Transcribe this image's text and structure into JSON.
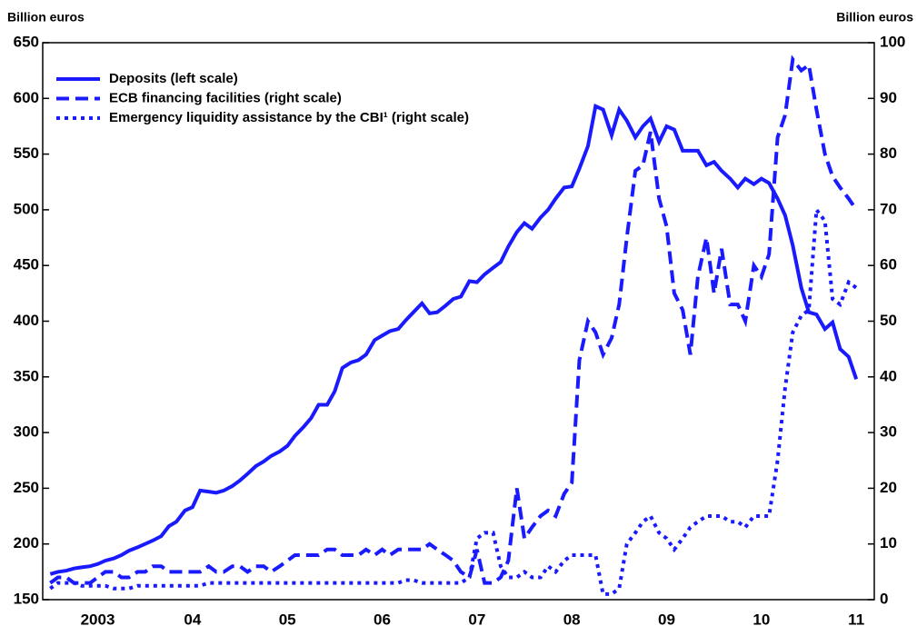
{
  "chart_data": {
    "type": "line",
    "y_label": "Billion euros",
    "y2_label": "Billion euros",
    "x": [
      2003,
      2003.08,
      2003.17,
      2003.25,
      2003.33,
      2003.42,
      2003.5,
      2003.58,
      2003.67,
      2003.75,
      2003.83,
      2003.92,
      2004,
      2004.08,
      2004.17,
      2004.25,
      2004.33,
      2004.42,
      2004.5,
      2004.58,
      2004.67,
      2004.75,
      2004.83,
      2004.92,
      2005,
      2005.08,
      2005.17,
      2005.25,
      2005.33,
      2005.42,
      2005.5,
      2005.58,
      2005.67,
      2005.75,
      2005.83,
      2005.92,
      2006,
      2006.08,
      2006.17,
      2006.25,
      2006.33,
      2006.42,
      2006.5,
      2006.58,
      2006.67,
      2006.75,
      2006.83,
      2006.92,
      2007,
      2007.08,
      2007.17,
      2007.25,
      2007.33,
      2007.42,
      2007.5,
      2007.58,
      2007.67,
      2007.75,
      2007.83,
      2007.92,
      2008,
      2008.08,
      2008.17,
      2008.25,
      2008.33,
      2008.42,
      2008.5,
      2008.58,
      2008.67,
      2008.75,
      2008.83,
      2008.92,
      2009,
      2009.08,
      2009.17,
      2009.25,
      2009.33,
      2009.42,
      2009.5,
      2009.58,
      2009.67,
      2009.75,
      2009.83,
      2009.92,
      2010,
      2010.08,
      2010.17,
      2010.25,
      2010.33,
      2010.42,
      2010.5,
      2010.58,
      2010.67,
      2010.75,
      2010.83,
      2010.92,
      2011,
      2011.08,
      2011.17,
      2011.25,
      2011.33,
      2011.42,
      2011.5
    ],
    "xlim": [
      2002.92,
      2011.69
    ],
    "xticks": [
      {
        "value": 2003.5,
        "label": "2003"
      },
      {
        "value": 2004.5,
        "label": "04"
      },
      {
        "value": 2005.5,
        "label": "05"
      },
      {
        "value": 2006.5,
        "label": "06"
      },
      {
        "value": 2007.5,
        "label": "07"
      },
      {
        "value": 2008.5,
        "label": "08"
      },
      {
        "value": 2009.5,
        "label": "09"
      },
      {
        "value": 2010.5,
        "label": "10"
      },
      {
        "value": 2011.5,
        "label": "11"
      }
    ],
    "ylim": [
      150,
      650
    ],
    "yticks": [
      150,
      200,
      250,
      300,
      350,
      400,
      450,
      500,
      550,
      600,
      650
    ],
    "y2lim": [
      0,
      100
    ],
    "y2ticks": [
      0,
      10,
      20,
      30,
      40,
      50,
      60,
      70,
      80,
      90,
      100
    ],
    "legend": "upper left",
    "series": [
      {
        "name": "Deposits (left scale)",
        "color": "#1a1aff",
        "style": "solid",
        "values": [
          173,
          175,
          176,
          178,
          179,
          180,
          182,
          185,
          187,
          190,
          194,
          197,
          200,
          203,
          207,
          216,
          220,
          230,
          233,
          248,
          247,
          246,
          248,
          252,
          257,
          263,
          270,
          274,
          279,
          283,
          288,
          297,
          305,
          313,
          325,
          325,
          337,
          358,
          363,
          365,
          370,
          383,
          387,
          391,
          393,
          401,
          408,
          416,
          407,
          408,
          414,
          420,
          422,
          436,
          435,
          442,
          448,
          453,
          467,
          480,
          488,
          483,
          493,
          500,
          510,
          520,
          521,
          537,
          557,
          593,
          590,
          567,
          590,
          580,
          565,
          575,
          582,
          561,
          575,
          572,
          553,
          553,
          553,
          540,
          543,
          535,
          528,
          520,
          528,
          523,
          528,
          524,
          510,
          495,
          468,
          430,
          408,
          406,
          393,
          399,
          375,
          368,
          348
        ]
      },
      {
        "name": "ECB financing facilities (right scale)",
        "color": "#1a1aff",
        "style": "dashed",
        "axis": "y2",
        "values": [
          3,
          4,
          4,
          3,
          3,
          3,
          4,
          5,
          5,
          4,
          4,
          5,
          5,
          6,
          6,
          5,
          5,
          5,
          5,
          5,
          6,
          5,
          5,
          6,
          6,
          5,
          6,
          6,
          5,
          6,
          7,
          8,
          8,
          8,
          8,
          9,
          9,
          8,
          8,
          8,
          9,
          8,
          9,
          8,
          9,
          9,
          9,
          9,
          10,
          9,
          8,
          7,
          5,
          4,
          9,
          3,
          3,
          4,
          7,
          20,
          11,
          13,
          15,
          16,
          15,
          19,
          21,
          43,
          50,
          48,
          44,
          47,
          53,
          65,
          77,
          78,
          84,
          72,
          67,
          55,
          52,
          44,
          58,
          65,
          55,
          63,
          53,
          53,
          50,
          60,
          58,
          62,
          83,
          87,
          97,
          95,
          96,
          88,
          80,
          76,
          74,
          72,
          70
        ]
      },
      {
        "name": "Emergency liquidity assistance by the CBI¹ (right scale)",
        "color": "#1a1aff",
        "style": "dotted",
        "axis": "y2",
        "values": [
          2,
          3,
          3,
          3,
          2.5,
          2.5,
          2.5,
          2.5,
          2,
          2,
          2,
          2.5,
          2.5,
          2.5,
          2.5,
          2.5,
          2.5,
          2.5,
          2.5,
          2.5,
          3,
          3,
          3,
          3,
          3,
          3,
          3,
          3,
          3,
          3,
          3,
          3,
          3,
          3,
          3,
          3,
          3,
          3,
          3,
          3,
          3,
          3,
          3,
          3,
          3,
          3.5,
          3.5,
          3,
          3,
          3,
          3,
          3,
          3,
          4,
          11,
          12,
          12,
          6,
          4,
          4,
          5,
          4,
          4,
          6,
          5,
          7,
          8,
          8,
          8,
          8,
          1,
          1,
          2,
          10,
          12,
          14,
          15,
          12,
          11,
          9,
          11,
          13,
          14,
          15,
          15,
          15,
          14,
          14,
          13,
          15,
          15,
          15,
          25,
          38,
          48,
          51,
          52,
          70,
          68,
          54,
          53,
          57,
          56
        ]
      }
    ]
  }
}
